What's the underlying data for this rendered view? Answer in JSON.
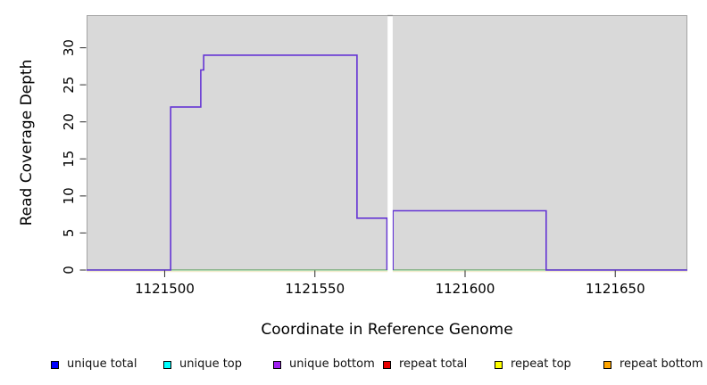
{
  "chart_data": {
    "type": "line",
    "title": "",
    "xlabel": "Coordinate in Reference Genome",
    "ylabel": "Read Coverage Depth",
    "xlim": [
      1121474,
      1121674
    ],
    "ylim": [
      0,
      34.4
    ],
    "xticks": [
      1121500,
      1121550,
      1121600,
      1121650
    ],
    "yticks": [
      0,
      5,
      10,
      15,
      20,
      25,
      30
    ],
    "grid": false,
    "legend_position": "bottom",
    "plot_bg_color": "#d9d9d9",
    "plot_border_color": "#a3a3a3",
    "tick_color": "#3f3f3f",
    "no_data_gap": {
      "x0": 1121574.2,
      "x1": 1121575.9
    },
    "series": [
      {
        "name": "zero baseline",
        "color": "#80c080",
        "width": 1.2,
        "segments": [
          [
            [
              1121474,
              0
            ],
            [
              1121674,
              0
            ]
          ]
        ]
      },
      {
        "name": "unique bottom",
        "color": "#6434d4",
        "width": 1.6,
        "segments": [
          [
            [
              1121474,
              0
            ],
            [
              1121502,
              0
            ],
            [
              1121502,
              22
            ],
            [
              1121512,
              22
            ],
            [
              1121512,
              27
            ],
            [
              1121513,
              27
            ],
            [
              1121513,
              29
            ],
            [
              1121564,
              29
            ],
            [
              1121564,
              7
            ],
            [
              1121574,
              7
            ],
            [
              1121574,
              0
            ]
          ],
          [
            [
              1121576,
              0
            ],
            [
              1121576,
              8
            ],
            [
              1121627,
              8
            ],
            [
              1121627,
              0
            ],
            [
              1121674,
              0
            ]
          ]
        ]
      }
    ],
    "legend": [
      {
        "label": "unique total",
        "color": "#0000ff"
      },
      {
        "label": "unique top",
        "color": "#00ffff"
      },
      {
        "label": "unique bottom",
        "color": "#a020f0"
      },
      {
        "label": "repeat total",
        "color": "#e80000"
      },
      {
        "label": "repeat top",
        "color": "#ffff00"
      },
      {
        "label": "repeat bottom",
        "color": "#ffa500"
      }
    ]
  }
}
